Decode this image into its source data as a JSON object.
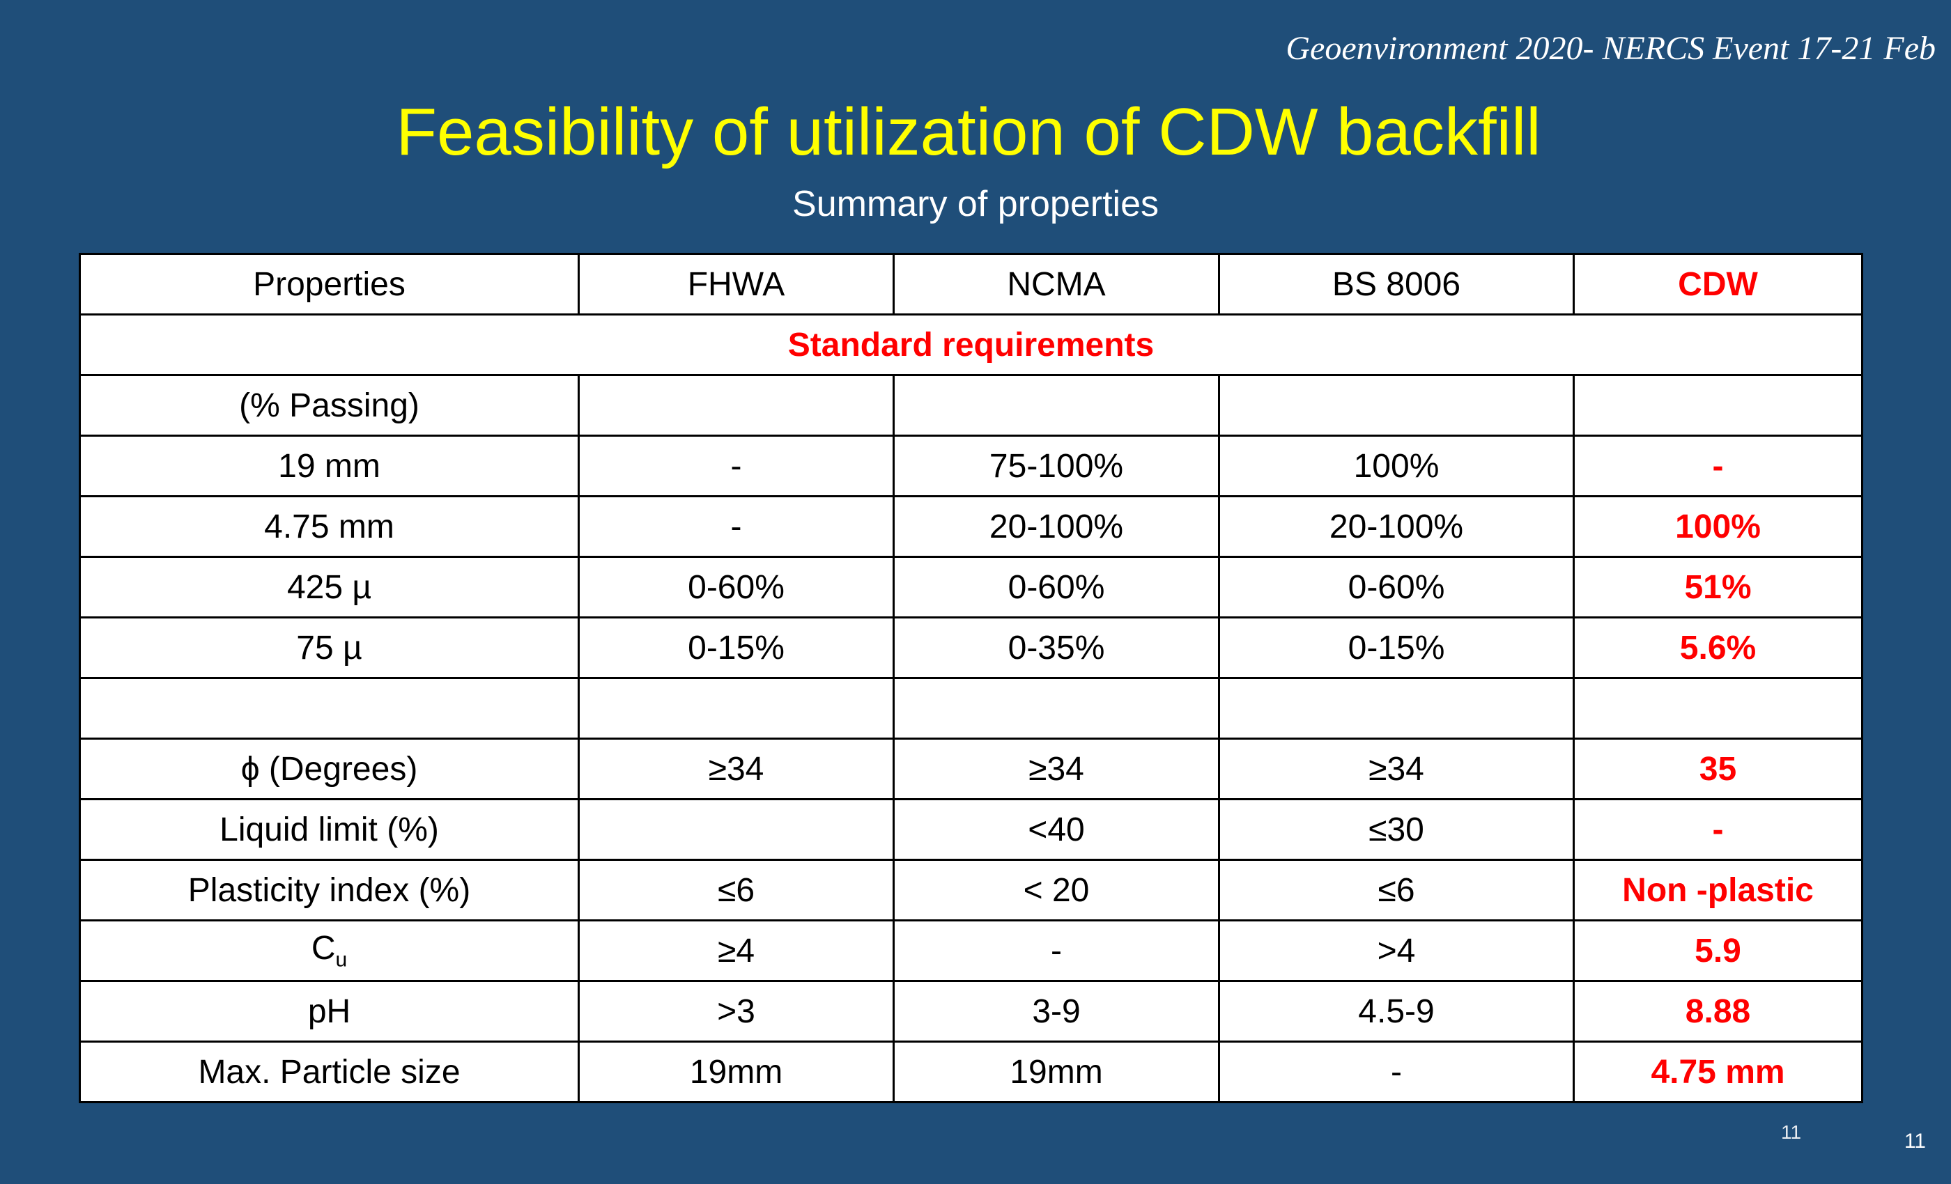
{
  "header": {
    "event": "Geoenvironment 2020- NERCS Event 17-21 Feb",
    "title": "Feasibility of utilization of CDW backfill",
    "subtitle": "Summary of properties"
  },
  "table": {
    "columns": [
      "Properties",
      "FHWA",
      "NCMA",
      "BS 8006",
      "CDW"
    ],
    "section_label": "Standard requirements",
    "rows": [
      {
        "property": "(% Passing)",
        "fhwa": "",
        "ncma": "",
        "bs8006": "",
        "cdw": ""
      },
      {
        "property": "19 mm",
        "fhwa": "-",
        "ncma": "75-100%",
        "bs8006": "100%",
        "cdw": "-"
      },
      {
        "property": "4.75 mm",
        "fhwa": "-",
        "ncma": "20-100%",
        "bs8006": "20-100%",
        "cdw": "100%"
      },
      {
        "property": "425 µ",
        "fhwa": "0-60%",
        "ncma": "0-60%",
        "bs8006": "0-60%",
        "cdw": "51%"
      },
      {
        "property": "75 µ",
        "fhwa": "0-15%",
        "ncma": "0-35%",
        "bs8006": "0-15%",
        "cdw": "5.6%"
      },
      {
        "property": "",
        "fhwa": "",
        "ncma": "",
        "bs8006": "",
        "cdw": ""
      },
      {
        "property": "ϕ (Degrees)",
        "fhwa": "≥34",
        "ncma": "≥34",
        "bs8006": "≥34",
        "cdw": "35"
      },
      {
        "property": "Liquid limit (%)",
        "fhwa": "",
        "ncma": "<40",
        "bs8006": "≤30",
        "cdw": "-"
      },
      {
        "property": "Plasticity index (%)",
        "fhwa": "≤6",
        "ncma": "< 20",
        "bs8006": "≤6",
        "cdw": "Non -plastic"
      },
      {
        "property": "C",
        "property_sub": "u",
        "fhwa": "≥4",
        "ncma": "-",
        "bs8006": ">4",
        "cdw": "5.9"
      },
      {
        "property": "pH",
        "fhwa": ">3",
        "ncma": "3-9",
        "bs8006": "4.5-9",
        "cdw": "8.88"
      },
      {
        "property": "Max. Particle size",
        "fhwa": "19mm",
        "ncma": "19mm",
        "bs8006": "-",
        "cdw": "4.75 mm"
      }
    ]
  },
  "footer": {
    "page_number": "11",
    "page_number_ghost": "11"
  }
}
